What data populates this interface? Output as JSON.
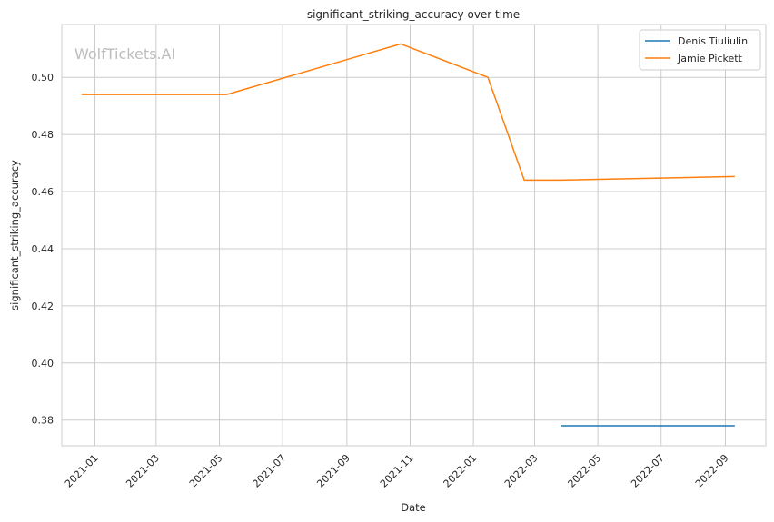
{
  "chart_data": {
    "type": "line",
    "title": "significant_striking_accuracy over time",
    "xlabel": "Date",
    "ylabel": "significant_striking_accuracy",
    "watermark": "WolfTickets.AI",
    "xlim": [
      "2020-11-30",
      "2022-10-10"
    ],
    "ylim": [
      0.371,
      0.5185
    ],
    "x_ticks": [
      "2021-01",
      "2021-03",
      "2021-05",
      "2021-07",
      "2021-09",
      "2021-11",
      "2022-01",
      "2022-03",
      "2022-05",
      "2022-07",
      "2022-09"
    ],
    "y_ticks": [
      "0.38",
      "0.40",
      "0.42",
      "0.44",
      "0.46",
      "0.48",
      "0.50"
    ],
    "grid": true,
    "legend_position": "top-right",
    "series": [
      {
        "name": "Denis Tiuliulin",
        "color": "#1f77b4",
        "points": [
          {
            "x": "2022-03-26",
            "y": 0.378
          },
          {
            "x": "2022-09-10",
            "y": 0.378
          }
        ]
      },
      {
        "name": "Jamie Pickett",
        "color": "#ff7f0e",
        "points": [
          {
            "x": "2020-12-19",
            "y": 0.494
          },
          {
            "x": "2021-05-08",
            "y": 0.494
          },
          {
            "x": "2021-10-23",
            "y": 0.5117
          },
          {
            "x": "2022-01-15",
            "y": 0.5
          },
          {
            "x": "2022-02-19",
            "y": 0.464
          },
          {
            "x": "2022-03-26",
            "y": 0.464
          },
          {
            "x": "2022-09-10",
            "y": 0.4653
          }
        ]
      }
    ]
  }
}
